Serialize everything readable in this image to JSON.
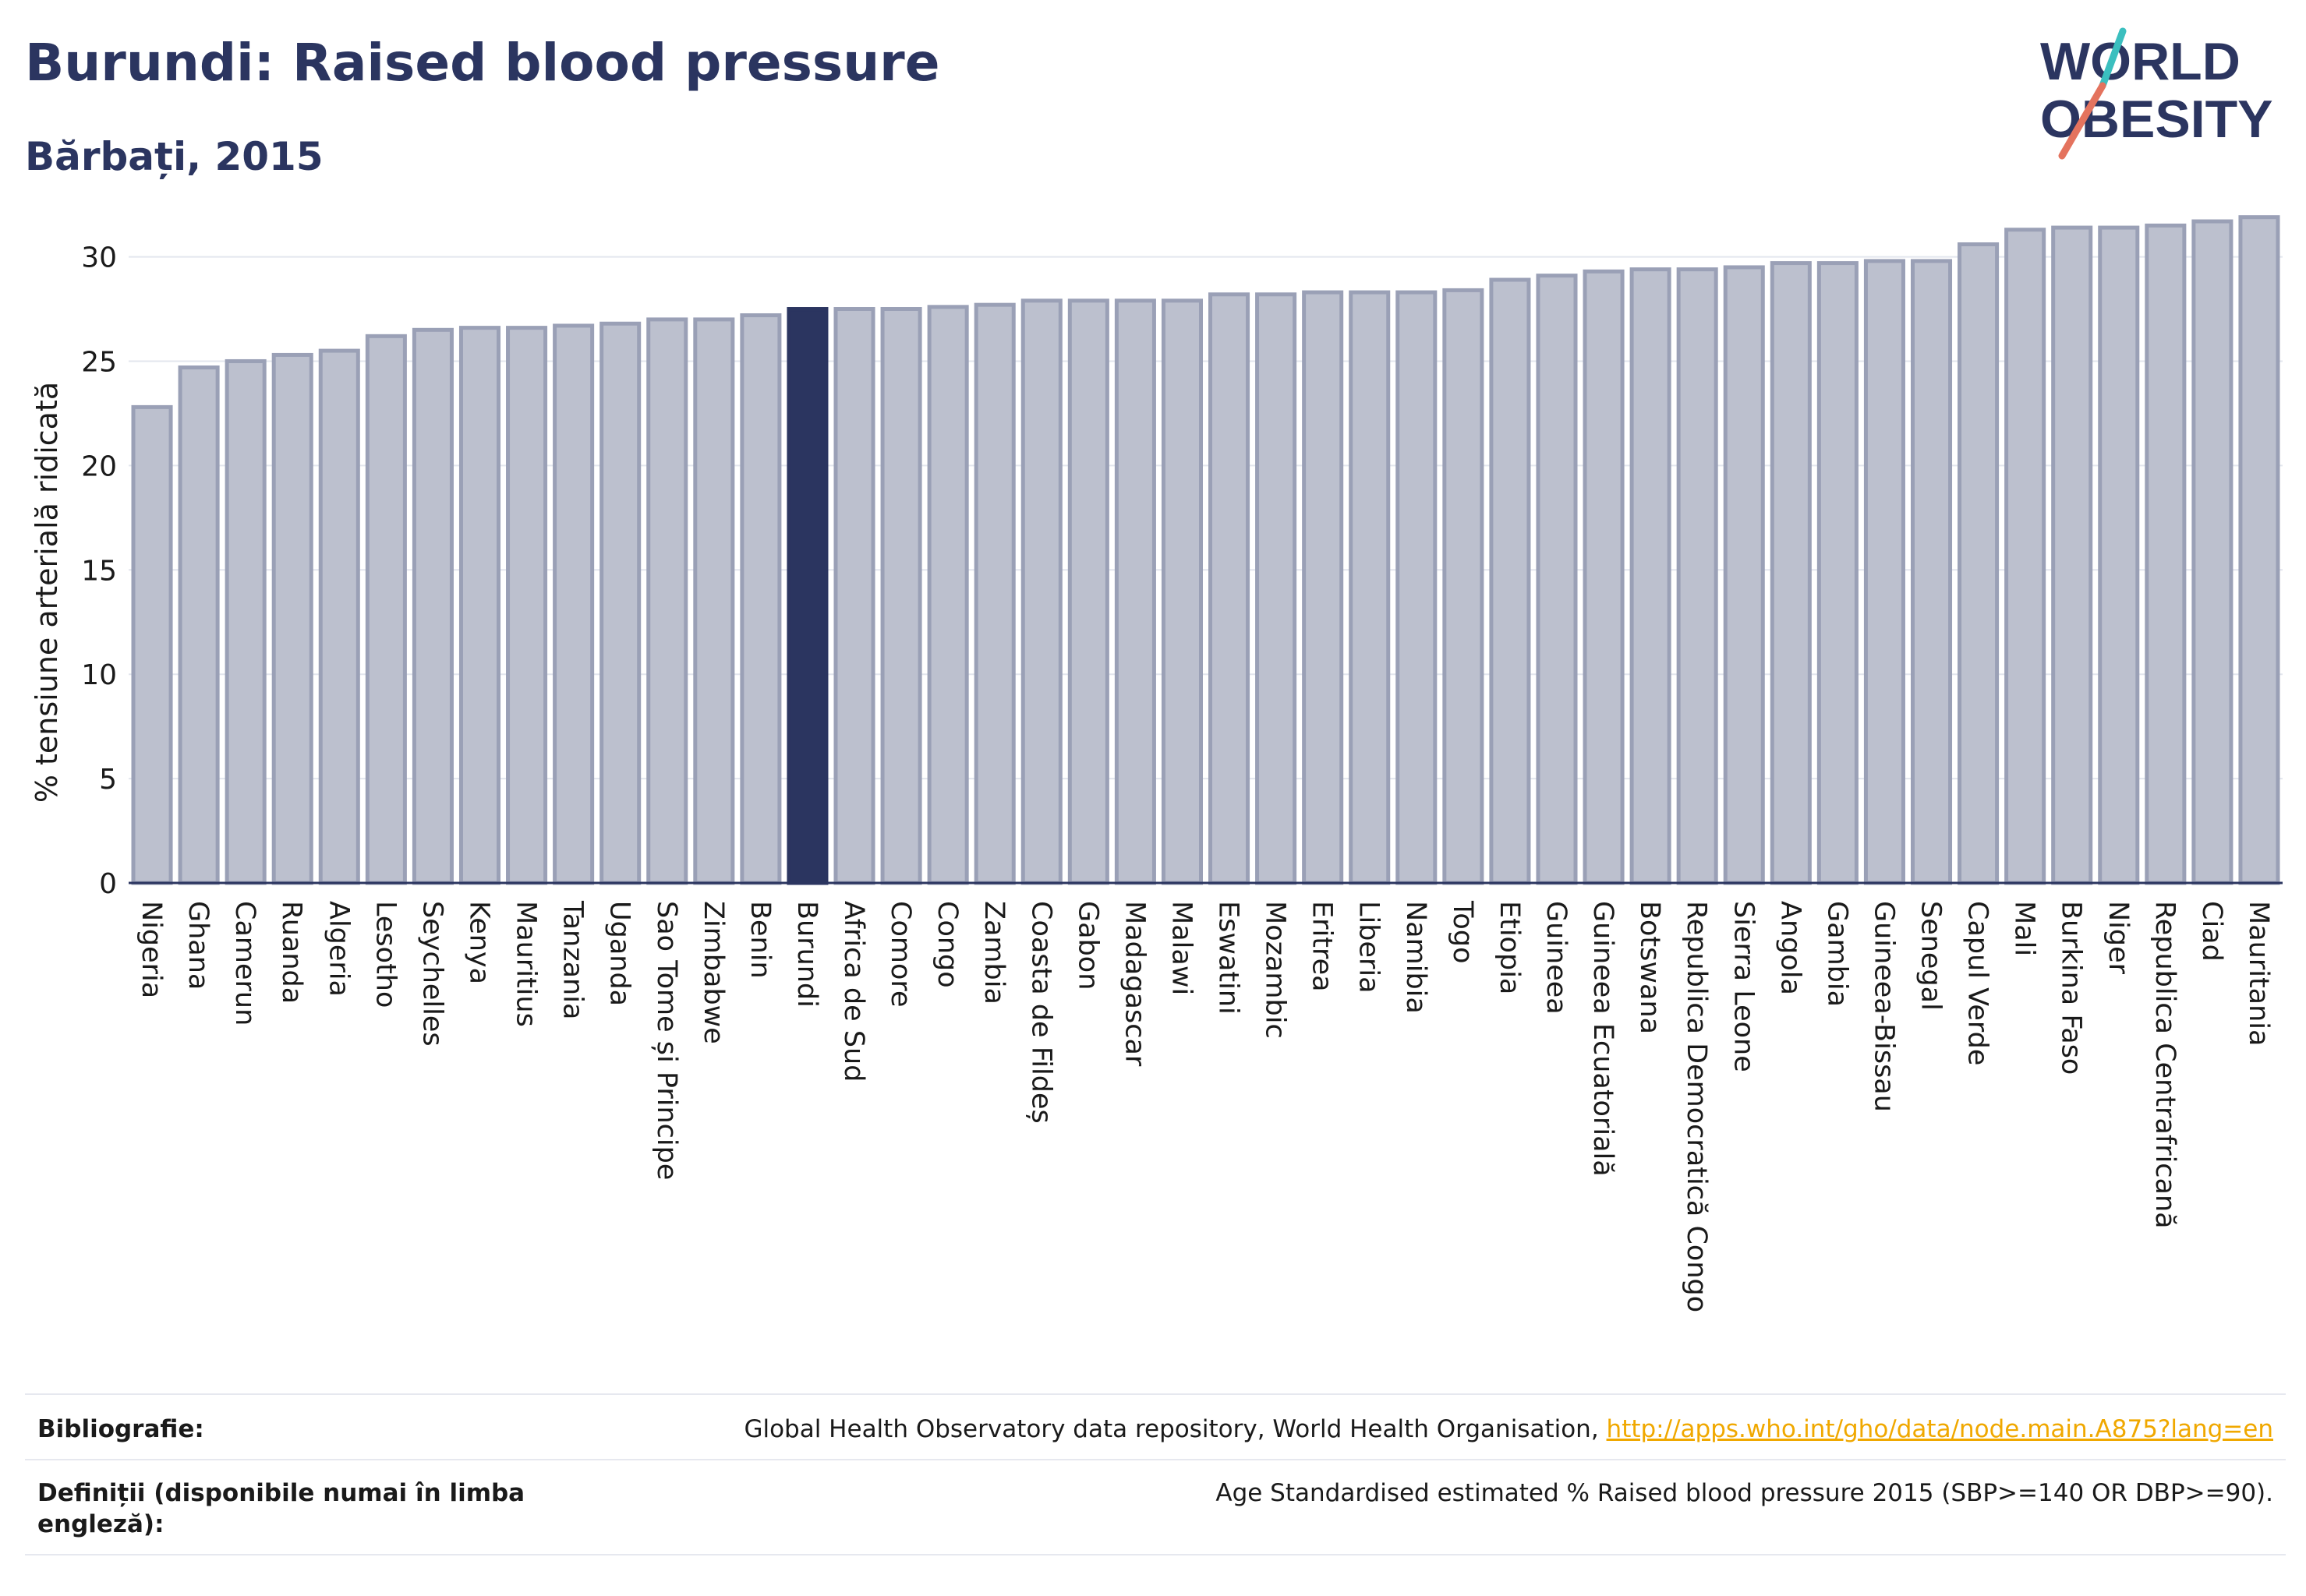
{
  "header": {
    "title": "Burundi: Raised blood pressure",
    "subtitle": "Bărbați, 2015"
  },
  "logo": {
    "line1": "WORLD",
    "line2": "OBESITY",
    "slash_colors": [
      "#3bbfbf",
      "#e4735e"
    ]
  },
  "colors": {
    "bar": "#bcc0ce",
    "bar_edge": "#9aa0b6",
    "highlight": "#2b3560",
    "text": "#1a1a1a",
    "title": "#2b3560"
  },
  "chart_data": {
    "type": "bar",
    "ylabel": "% tensiune arterială ridicată",
    "ylim": [
      0,
      32
    ],
    "yticks": [
      0,
      5,
      10,
      15,
      20,
      25,
      30
    ],
    "grid": true,
    "highlight": "Burundi",
    "categories": [
      "Nigeria",
      "Ghana",
      "Camerun",
      "Ruanda",
      "Algeria",
      "Lesotho",
      "Seychelles",
      "Kenya",
      "Mauritius",
      "Tanzania",
      "Uganda",
      "Sao Tome și Principe",
      "Zimbabwe",
      "Benin",
      "Burundi",
      "Africa de Sud",
      "Comore",
      "Congo",
      "Zambia",
      "Coasta de Fildeș",
      "Gabon",
      "Madagascar",
      "Malawi",
      "Eswatini",
      "Mozambic",
      "Eritrea",
      "Liberia",
      "Namibia",
      "Togo",
      "Etiopia",
      "Guineea",
      "Guineea Ecuatorială",
      "Botswana",
      "Republica Democratică Congo",
      "Sierra Leone",
      "Angola",
      "Gambia",
      "Guineea-Bissau",
      "Senegal",
      "Capul Verde",
      "Mali",
      "Burkina Faso",
      "Niger",
      "Republica Centrafricană",
      "Ciad",
      "Mauritania"
    ],
    "values": [
      22.8,
      24.7,
      25.0,
      25.3,
      25.5,
      26.2,
      26.5,
      26.6,
      26.6,
      26.7,
      26.8,
      27.0,
      27.0,
      27.2,
      27.5,
      27.5,
      27.5,
      27.6,
      27.7,
      27.9,
      27.9,
      27.9,
      27.9,
      28.2,
      28.2,
      28.3,
      28.3,
      28.3,
      28.4,
      28.9,
      29.1,
      29.3,
      29.4,
      29.4,
      29.5,
      29.7,
      29.7,
      29.8,
      29.8,
      30.6,
      31.3,
      31.4,
      31.4,
      31.5,
      31.7,
      31.9
    ]
  },
  "footer": {
    "bibliography_label": "Bibliografie:",
    "bibliography_text": "Global Health Observatory data repository, World Health Organisation, ",
    "bibliography_link": "http://apps.who.int/gho/data/node.main.A875?lang=en",
    "definitions_label": "Definiții (disponibile numai în limba engleză):",
    "definitions_text": "Age Standardised estimated % Raised blood pressure 2015 (SBP>=140 OR DBP>=90)."
  }
}
